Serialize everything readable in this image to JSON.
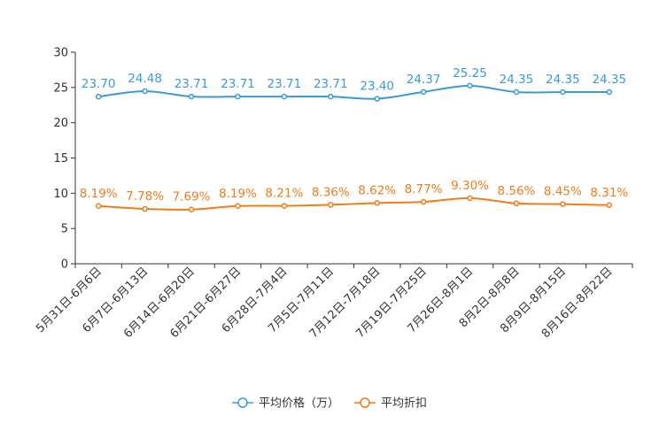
{
  "chart_data": {
    "type": "line",
    "title": "",
    "xlabel": "",
    "ylabel": "",
    "ylim": [
      0,
      30
    ],
    "yticks": [
      "0",
      "5",
      "10",
      "15",
      "20",
      "25",
      "30"
    ],
    "categories": [
      "5月31日-6月6日",
      "6月7日-6月13日",
      "6月14日-6月20日",
      "6月21日-6月27日",
      "6月28日-7月4日",
      "7月5日-7月11日",
      "7月12日-7月18日",
      "7月19日-7月25日",
      "7月26日-8月1日",
      "8月2日-8月8日",
      "8月9日-8月15日",
      "8月16日-8月22日"
    ],
    "series": [
      {
        "name": "平均价格（万）",
        "color": "#3a9ad9",
        "values": [
          23.7,
          24.48,
          23.71,
          23.71,
          23.71,
          23.71,
          23.4,
          24.37,
          25.25,
          24.35,
          24.35,
          24.35
        ],
        "labels": [
          "23.70",
          "24.48",
          "23.71",
          "23.71",
          "23.71",
          "23.71",
          "23.40",
          "24.37",
          "25.25",
          "24.35",
          "24.35",
          "24.35"
        ]
      },
      {
        "name": "平均折扣",
        "color": "#f07c1b",
        "values": [
          8.19,
          7.78,
          7.69,
          8.19,
          8.21,
          8.36,
          8.62,
          8.77,
          9.3,
          8.56,
          8.45,
          8.31
        ],
        "labels": [
          "8.19%",
          "7.78%",
          "7.69%",
          "8.19%",
          "8.21%",
          "8.36%",
          "8.62%",
          "8.77%",
          "9.30%",
          "8.56%",
          "8.45%",
          "8.31%"
        ]
      }
    ],
    "legend": {
      "placement": "bottom-center",
      "items": [
        "平均价格（万）",
        "平均折扣"
      ]
    },
    "grid": false
  }
}
